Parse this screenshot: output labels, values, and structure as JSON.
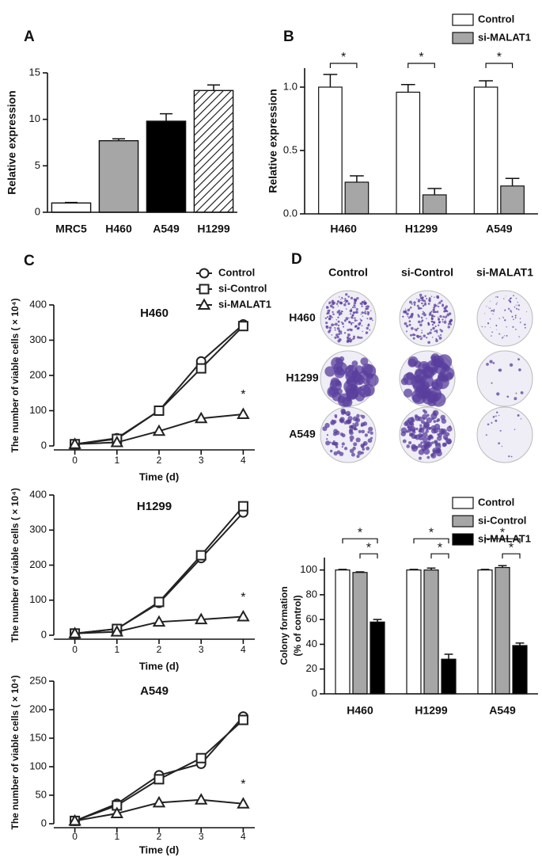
{
  "chart_data": [
    {
      "type": "bar",
      "panel": "A",
      "ylabel": "Relative expression",
      "categories": [
        "MRC5",
        "H460",
        "A549",
        "H1299"
      ],
      "values": [
        1.0,
        7.7,
        9.8,
        13.1
      ],
      "errors": [
        0.05,
        0.2,
        0.8,
        0.6
      ],
      "colors": [
        "#ffffff",
        "#a6a6a6",
        "#000000",
        "#ffffff"
      ],
      "hatch": [
        false,
        false,
        false,
        true
      ],
      "ylim": [
        0,
        15
      ],
      "yticks": [
        0,
        5,
        10,
        15
      ]
    },
    {
      "type": "bar",
      "panel": "B",
      "ylabel": "Relative expression",
      "categories": [
        "H460",
        "H1299",
        "A549"
      ],
      "series": [
        {
          "name": "Control",
          "color": "#ffffff",
          "values": [
            1.0,
            0.96,
            1.0
          ],
          "errors": [
            0.1,
            0.06,
            0.05
          ]
        },
        {
          "name": "si-MALAT1",
          "color": "#a6a6a6",
          "values": [
            0.25,
            0.15,
            0.22
          ],
          "errors": [
            0.05,
            0.05,
            0.06
          ]
        }
      ],
      "significance": [
        "*",
        "*",
        "*"
      ],
      "ylim": [
        0,
        1.15
      ],
      "yticks": [
        {
          "value": 0,
          "label": "0.0"
        },
        {
          "value": 0.5,
          "label": "0.5"
        },
        {
          "value": 1,
          "label": "1.0"
        }
      ]
    },
    {
      "type": "line",
      "panel": "C",
      "title": "H460",
      "xlabel": "Time (d)",
      "ylabel": "The number of viable cells ( × 10⁴)",
      "x": [
        0,
        1,
        2,
        3,
        4
      ],
      "xlim": [
        -0.5,
        4.5
      ],
      "xticks": [
        0,
        1,
        2,
        3,
        4
      ],
      "ylim": [
        0,
        400
      ],
      "yticks": [
        0,
        100,
        200,
        300,
        400
      ],
      "annotation": "*",
      "series": [
        {
          "name": "Control",
          "marker": "circle",
          "color": "#222222",
          "values": [
            5,
            22,
            100,
            240,
            345
          ]
        },
        {
          "name": "si-Control",
          "marker": "square",
          "color": "#222222",
          "values": [
            5,
            20,
            100,
            220,
            340
          ]
        },
        {
          "name": "si-MALAT1",
          "marker": "triangle",
          "color": "#222222",
          "values": [
            5,
            10,
            42,
            78,
            90
          ]
        }
      ]
    },
    {
      "type": "line",
      "title": "H1299",
      "xlabel": "Time (d)",
      "ylabel": "The number of viable cells ( × 10⁴)",
      "x": [
        0,
        1,
        2,
        3,
        4
      ],
      "xlim": [
        -0.5,
        4.5
      ],
      "xticks": [
        0,
        1,
        2,
        3,
        4
      ],
      "ylim": [
        0,
        400
      ],
      "yticks": [
        0,
        100,
        200,
        300,
        400
      ],
      "annotation": "*",
      "series": [
        {
          "marker": "circle",
          "color": "#222222",
          "values": [
            5,
            18,
            92,
            220,
            350
          ]
        },
        {
          "marker": "square",
          "color": "#222222",
          "values": [
            5,
            18,
            95,
            228,
            368
          ]
        },
        {
          "marker": "triangle",
          "color": "#222222",
          "values": [
            5,
            10,
            38,
            45,
            53
          ]
        }
      ]
    },
    {
      "type": "line",
      "title": "A549",
      "xlabel": "Time (d)",
      "ylabel": "The number of viable cells ( × 10⁴)",
      "x": [
        0,
        1,
        2,
        3,
        4
      ],
      "xlim": [
        -0.5,
        4.5
      ],
      "xticks": [
        0,
        1,
        2,
        3,
        4
      ],
      "ylim": [
        0,
        250
      ],
      "yticks": [
        0,
        50,
        100,
        150,
        200,
        250
      ],
      "annotation": "*",
      "series": [
        {
          "marker": "circle",
          "color": "#222222",
          "values": [
            5,
            35,
            85,
            105,
            188
          ]
        },
        {
          "marker": "square",
          "color": "#222222",
          "values": [
            5,
            32,
            78,
            115,
            182
          ]
        },
        {
          "marker": "triangle",
          "color": "#222222",
          "values": [
            5,
            18,
            37,
            42,
            35
          ]
        }
      ]
    },
    {
      "type": "bar",
      "ylabel": [
        "Colony formation",
        "(% of control)"
      ],
      "categories": [
        "H460",
        "H1299",
        "A549"
      ],
      "series": [
        {
          "name": "Control",
          "color": "#ffffff",
          "values": [
            100,
            100,
            100
          ],
          "errors": [
            0.5,
            0.5,
            0.5
          ]
        },
        {
          "name": "si-Control",
          "color": "#a6a6a6",
          "values": [
            98,
            100,
            102
          ],
          "errors": [
            0.5,
            1.5,
            1.5
          ]
        },
        {
          "name": "si-MALAT1",
          "color": "#000000",
          "values": [
            58,
            28,
            39
          ],
          "errors": [
            2,
            4,
            2
          ]
        }
      ],
      "significance": [
        [
          "*",
          "*"
        ],
        [
          "*",
          "*"
        ],
        [
          "*",
          "*"
        ]
      ],
      "ylim": [
        0,
        110
      ],
      "yticks": [
        0,
        20,
        40,
        60,
        80,
        100
      ]
    }
  ],
  "plates": {
    "panel": "D",
    "columns": [
      "Control",
      "si-Control",
      "si-MALAT1"
    ],
    "rows": [
      "H460",
      "H1299",
      "A549"
    ]
  }
}
